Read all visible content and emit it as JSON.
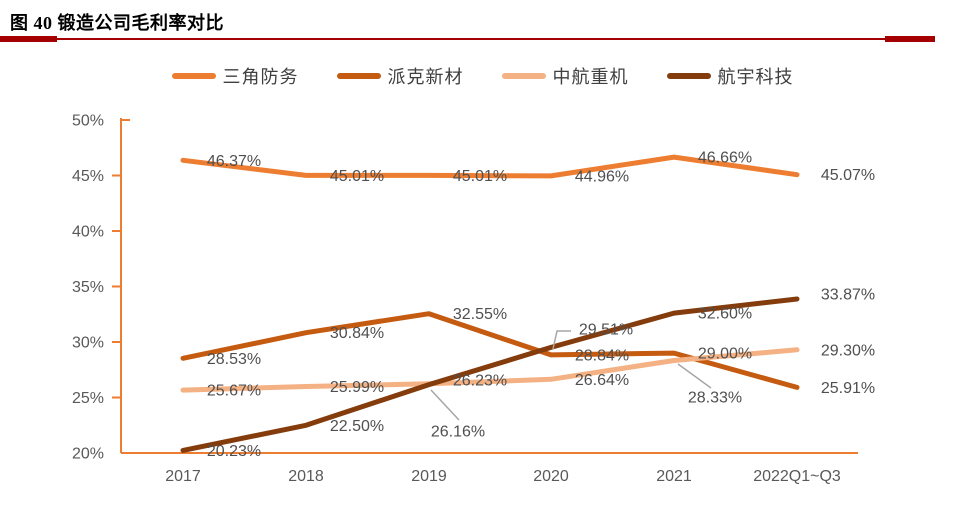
{
  "page": {
    "title": "图 40 锻造公司毛利率对比",
    "accent_rule_color": "#A40000"
  },
  "chart_data": {
    "type": "line",
    "title": "锻造公司毛利率对比",
    "categories": [
      "2017",
      "2018",
      "2019",
      "2020",
      "2021",
      "2022Q1~Q3"
    ],
    "y_ticks": [
      "50%",
      "45%",
      "40%",
      "35%",
      "30%",
      "25%",
      "20%"
    ],
    "ylim": [
      20,
      50
    ],
    "y_tick_step": 5,
    "grid": "off",
    "legend_position": "top",
    "axis_color": "#ED7D31",
    "tick_label_color": "#595959",
    "data_label_color": "#4f4f4f",
    "leader_line_color": "#A6A6A6",
    "series": [
      {
        "name": "三角防务",
        "color": "#ED7D31",
        "values": [
          46.37,
          45.01,
          45.01,
          44.96,
          46.66,
          45.07
        ],
        "labels": [
          "46.37%",
          "45.01%",
          "45.01%",
          "44.96%",
          "46.66%",
          "45.07%"
        ]
      },
      {
        "name": "派克新材",
        "color": "#C55A11",
        "values": [
          28.53,
          30.84,
          32.55,
          28.84,
          29.0,
          25.91
        ],
        "labels": [
          "28.53%",
          "30.84%",
          "32.55%",
          "28.84%",
          "29.00%",
          "25.91%"
        ]
      },
      {
        "name": "中航重机",
        "color": "#F4B183",
        "values": [
          25.67,
          25.99,
          26.23,
          26.64,
          28.33,
          29.3
        ],
        "labels": [
          "25.67%",
          "25.99%",
          "26.23%",
          "26.64%",
          "28.33%",
          "29.30%"
        ]
      },
      {
        "name": "航宇科技",
        "color": "#843C0C",
        "values": [
          20.23,
          22.5,
          26.16,
          29.51,
          32.6,
          33.87
        ],
        "labels": [
          "20.23%",
          "22.50%",
          "26.16%",
          "29.51%",
          "32.60%",
          "33.87%"
        ]
      }
    ]
  }
}
